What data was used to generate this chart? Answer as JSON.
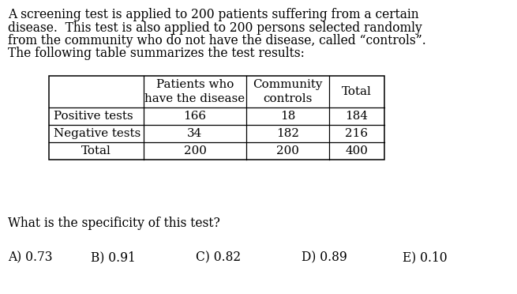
{
  "paragraph_lines": [
    "A screening test is applied to 200 patients suffering from a certain",
    "disease.  This test is also applied to 200 persons selected randomly",
    "from the community who do not have the disease, called “controls”.",
    "The following table summarizes the test results:"
  ],
  "table_col_headers": [
    "",
    "Patients who\nhave the disease",
    "Community\ncontrols",
    "Total"
  ],
  "table_rows": [
    [
      "Positive tests",
      "166",
      "18",
      "184"
    ],
    [
      "Negative tests",
      "34",
      "182",
      "216"
    ],
    [
      "Total",
      "200",
      "200",
      "400"
    ]
  ],
  "question": "What is the specificity of this test?",
  "options": [
    "A) 0.73",
    "B) 0.91",
    "C) 0.82",
    "D) 0.89",
    "E) 0.10"
  ],
  "bg_color": "#ffffff",
  "text_color": "#000000",
  "font_size": 11.2,
  "font_family": "DejaVu Serif"
}
